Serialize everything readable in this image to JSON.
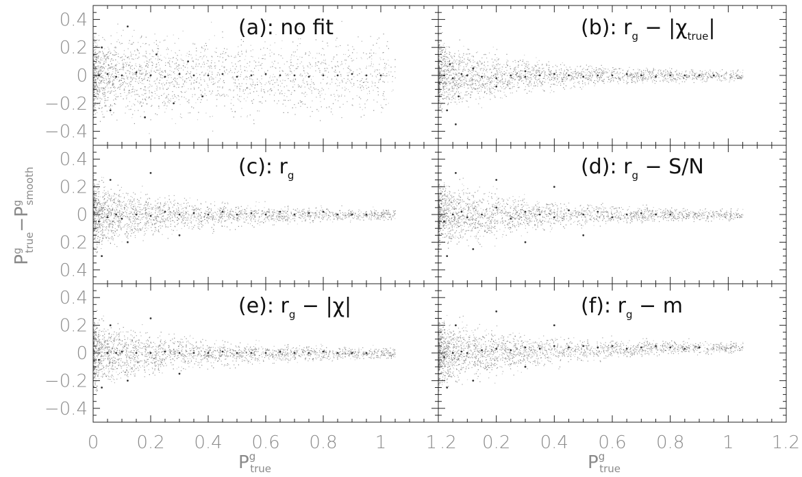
{
  "chart_data": {
    "type": "scatter",
    "layout": "3 rows x 2 columns of panels sharing axes",
    "x_axis": {
      "label": "P",
      "label_superscript": "g",
      "label_subscript": "true",
      "range": [
        0,
        1.2
      ],
      "ticks": [
        0,
        0.2,
        0.4,
        0.6,
        0.8,
        1,
        1.2
      ],
      "tick_labels_left": [
        "0",
        "0.2",
        "0.4",
        "0.6",
        "0.8",
        "1",
        "1"
      ],
      "tick_labels_right": [
        ".2",
        "0.2",
        "0.4",
        "0.6",
        "0.8",
        "1",
        "1.2"
      ]
    },
    "y_axis": {
      "label_part1": "P",
      "label_part1_sup": "g",
      "label_part1_sub": "true",
      "label_minus": "−",
      "label_part2": "P",
      "label_part2_sup": "g",
      "label_part2_sub": "smooth",
      "range": [
        -0.5,
        0.5
      ],
      "ticks": [
        0.4,
        0.2,
        0,
        -0.2,
        -0.4
      ],
      "tick_labels_top": [
        "0.4",
        "0.2",
        "0",
        "−0.2",
        "−0.4"
      ],
      "tick_labels_middle": [
        "0.4",
        "0.2",
        "0",
        "0.2",
        "0.4"
      ],
      "tick_labels_bottom": [
        "0.4",
        "0.2",
        "0",
        "−0.2",
        "−0.4"
      ]
    },
    "panels": [
      {
        "id": "a",
        "title": "(a): no fit",
        "x_range": [
          0,
          1.2
        ],
        "y_range": [
          -0.5,
          0.5
        ]
      },
      {
        "id": "b",
        "title_prefix": "(b): r",
        "title_sub": "g",
        "title_mid": " − |χ",
        "title_sub2": "true",
        "title_suffix": "|",
        "x_range": [
          0,
          1.2
        ],
        "y_range": [
          -0.5,
          0.5
        ]
      },
      {
        "id": "c",
        "title_prefix": "(c): r",
        "title_sub": "g",
        "x_range": [
          0,
          1.2
        ],
        "y_range": [
          -0.5,
          0.5
        ]
      },
      {
        "id": "d",
        "title_prefix": "(d): r",
        "title_sub": "g",
        "title_mid": " − S/N",
        "x_range": [
          0,
          1.2
        ],
        "y_range": [
          -0.5,
          0.5
        ]
      },
      {
        "id": "e",
        "title_prefix": "(e): r",
        "title_sub": "g",
        "title_mid": " − |χ|",
        "x_range": [
          0,
          1.2
        ],
        "y_range": [
          -0.5,
          0.5
        ]
      },
      {
        "id": "f",
        "title_prefix": "(f): r",
        "title_sub": "g",
        "title_mid": " − m",
        "x_range": [
          0,
          1.2
        ],
        "y_range": [
          -0.5,
          0.5
        ]
      }
    ],
    "points_note": "dense point cloud concentrated near x=0-0.1, spread along y=0 out to x~1",
    "series": [
      {
        "panel": "a",
        "x": [
          0.02,
          0.05,
          0.08,
          0.1,
          0.15,
          0.2,
          0.25,
          0.3,
          0.35,
          0.4,
          0.45,
          0.5,
          0.55,
          0.6,
          0.65,
          0.7,
          0.75,
          0.8,
          0.85,
          0.9,
          0.95,
          1.0,
          0.03,
          0.06,
          0.12,
          0.18,
          0.22,
          0.28,
          0.33,
          0.38
        ],
        "y": [
          0.0,
          0.01,
          -0.01,
          0.0,
          0.02,
          0.0,
          -0.01,
          0.01,
          0.0,
          0.0,
          0.01,
          -0.01,
          0.0,
          0.01,
          0.0,
          0.0,
          -0.01,
          0.0,
          0.0,
          0.01,
          0.0,
          0.0,
          0.2,
          -0.25,
          0.35,
          -0.3,
          0.15,
          -0.2,
          0.1,
          -0.15
        ]
      },
      {
        "panel": "b",
        "x": [
          0.02,
          0.05,
          0.08,
          0.1,
          0.15,
          0.2,
          0.25,
          0.3,
          0.35,
          0.4,
          0.45,
          0.5,
          0.55,
          0.6,
          0.65,
          0.7,
          0.75,
          0.8,
          0.85,
          0.9,
          0.95,
          0.03,
          0.06,
          0.04,
          0.07,
          0.12,
          0.2,
          0.3
        ],
        "y": [
          0.0,
          -0.02,
          0.01,
          0.0,
          -0.01,
          -0.02,
          0.0,
          -0.01,
          0.0,
          0.01,
          0.0,
          -0.01,
          0.0,
          0.0,
          0.01,
          0.0,
          -0.01,
          0.0,
          0.0,
          0.0,
          0.0,
          -0.25,
          -0.35,
          0.08,
          -0.15,
          0.05,
          -0.08,
          0.03
        ]
      },
      {
        "panel": "c",
        "x": [
          0.02,
          0.05,
          0.08,
          0.1,
          0.15,
          0.2,
          0.25,
          0.3,
          0.35,
          0.4,
          0.45,
          0.5,
          0.55,
          0.6,
          0.65,
          0.7,
          0.75,
          0.8,
          0.85,
          0.9,
          0.95,
          0.03,
          0.06,
          0.12,
          0.2,
          0.3
        ],
        "y": [
          -0.05,
          -0.02,
          0.0,
          -0.03,
          0.0,
          -0.01,
          0.02,
          0.0,
          0.01,
          0.0,
          0.02,
          0.0,
          0.01,
          0.0,
          0.02,
          0.0,
          0.01,
          0.02,
          0.0,
          0.0,
          0.0,
          -0.3,
          0.25,
          -0.2,
          0.3,
          -0.15
        ]
      },
      {
        "panel": "d",
        "x": [
          0.02,
          0.05,
          0.08,
          0.1,
          0.15,
          0.2,
          0.25,
          0.3,
          0.35,
          0.4,
          0.45,
          0.5,
          0.55,
          0.6,
          0.65,
          0.7,
          0.75,
          0.8,
          0.03,
          0.06,
          0.12,
          0.2,
          0.3,
          0.4,
          0.5
        ],
        "y": [
          -0.05,
          0.0,
          0.02,
          -0.02,
          0.0,
          0.05,
          -0.03,
          0.02,
          0.0,
          -0.02,
          0.03,
          0.0,
          0.02,
          -0.02,
          0.0,
          0.01,
          0.0,
          0.0,
          -0.3,
          0.3,
          -0.25,
          0.25,
          -0.2,
          0.2,
          -0.15
        ]
      },
      {
        "panel": "e",
        "x": [
          0.02,
          0.05,
          0.08,
          0.1,
          0.15,
          0.2,
          0.25,
          0.3,
          0.35,
          0.4,
          0.45,
          0.5,
          0.55,
          0.6,
          0.65,
          0.7,
          0.75,
          0.8,
          0.85,
          0.9,
          0.95,
          0.03,
          0.06,
          0.12,
          0.2,
          0.3
        ],
        "y": [
          -0.05,
          0.0,
          0.0,
          0.01,
          0.0,
          0.0,
          0.01,
          0.0,
          0.0,
          0.0,
          0.01,
          0.0,
          0.0,
          0.0,
          0.01,
          0.0,
          0.0,
          0.01,
          0.0,
          0.0,
          0.0,
          -0.25,
          0.2,
          -0.2,
          0.25,
          -0.15
        ]
      },
      {
        "panel": "f",
        "x": [
          0.02,
          0.05,
          0.08,
          0.1,
          0.15,
          0.2,
          0.25,
          0.3,
          0.35,
          0.4,
          0.45,
          0.5,
          0.55,
          0.6,
          0.65,
          0.7,
          0.75,
          0.8,
          0.85,
          0.9,
          0.03,
          0.06,
          0.12,
          0.2,
          0.3,
          0.4
        ],
        "y": [
          -0.03,
          0.0,
          0.01,
          0.0,
          0.02,
          0.03,
          0.02,
          0.04,
          0.03,
          0.05,
          0.04,
          0.05,
          0.04,
          0.05,
          0.03,
          0.04,
          0.05,
          0.04,
          0.03,
          0.04,
          -0.25,
          0.2,
          -0.2,
          0.3,
          -0.1,
          0.2
        ]
      }
    ],
    "colors": {
      "points": "#555555",
      "frame": "#222222",
      "tick_text": "#8a8a8a"
    }
  }
}
